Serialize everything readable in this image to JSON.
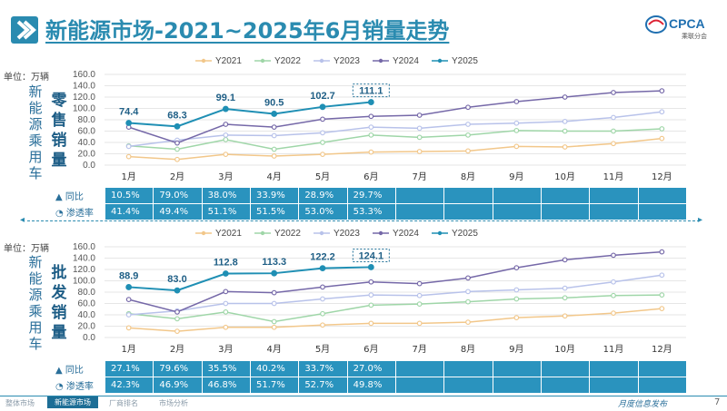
{
  "title": "新能源市场-2021~2025年6月销量走势",
  "logo_text": "CPCA",
  "logo_sub": "乘联分会",
  "months": [
    "1月",
    "2月",
    "3月",
    "4月",
    "5月",
    "6月",
    "7月",
    "8月",
    "9月",
    "10月",
    "11月",
    "12月"
  ],
  "legend": [
    "Y2021",
    "Y2022",
    "Y2023",
    "Y2024",
    "Y2025"
  ],
  "colors": {
    "Y2021": "#f2c78a",
    "Y2022": "#9fd6a8",
    "Y2023": "#b8c2ea",
    "Y2024": "#7568a8",
    "Y2025": "#1f8fb4"
  },
  "retail": {
    "unit": "单位：万辆",
    "category_label": "新能源乘用车",
    "chart_label": "零售销量",
    "yoy_label": "同比",
    "pen_label": "渗透率",
    "yoy": [
      "10.5%",
      "79.0%",
      "38.0%",
      "33.9%",
      "28.9%",
      "29.7%"
    ],
    "pen": [
      "41.4%",
      "49.4%",
      "51.1%",
      "51.5%",
      "53.0%",
      "53.3%"
    ]
  },
  "wholesale": {
    "unit": "单位：万辆",
    "category_label": "新能源乘用车",
    "chart_label": "批发销量",
    "yoy_label": "同比",
    "pen_label": "渗透率",
    "yoy": [
      "27.1%",
      "79.6%",
      "35.5%",
      "40.2%",
      "33.7%",
      "27.0%"
    ],
    "pen": [
      "42.3%",
      "46.9%",
      "46.8%",
      "51.7%",
      "52.7%",
      "49.8%"
    ]
  },
  "footer": {
    "tabs": [
      "整体市场",
      "新能源市场",
      "厂商排名",
      "市场分析"
    ],
    "active": 1,
    "release": "月度信息发布",
    "page": "7"
  },
  "chart_data": [
    {
      "type": "line",
      "title": "零售销量",
      "ylabel": "单位：万辆",
      "categories": [
        "1月",
        "2月",
        "3月",
        "4月",
        "5月",
        "6月",
        "7月",
        "8月",
        "9月",
        "10月",
        "11月",
        "12月"
      ],
      "ylim": [
        0,
        160
      ],
      "yticks": [
        "0.0",
        "20.0",
        "40.0",
        "60.0",
        "80.0",
        "100.0",
        "120.0",
        "140.0",
        "160.0"
      ],
      "series": [
        {
          "name": "Y2021",
          "values": [
            15,
            10,
            19,
            16,
            19,
            23,
            24,
            25,
            33,
            32,
            38,
            47
          ]
        },
        {
          "name": "Y2022",
          "values": [
            34,
            28,
            45,
            28,
            40,
            53,
            49,
            53,
            61,
            60,
            60,
            64
          ]
        },
        {
          "name": "Y2023",
          "values": [
            33,
            44,
            53,
            52,
            57,
            67,
            65,
            72,
            74,
            77,
            84,
            94
          ]
        },
        {
          "name": "Y2024",
          "values": [
            67,
            39,
            72,
            67,
            81,
            86,
            88,
            102,
            112,
            120,
            128,
            131
          ]
        },
        {
          "name": "Y2025",
          "values": [
            74.4,
            68.3,
            99.1,
            90.5,
            102.7,
            111.1
          ]
        }
      ],
      "labels": [
        "74.4",
        "68.3",
        "99.1",
        "90.5",
        "102.7",
        "111.1"
      ]
    },
    {
      "type": "line",
      "title": "批发销量",
      "ylabel": "单位：万辆",
      "categories": [
        "1月",
        "2月",
        "3月",
        "4月",
        "5月",
        "6月",
        "7月",
        "8月",
        "9月",
        "10月",
        "11月",
        "12月"
      ],
      "ylim": [
        0,
        160
      ],
      "yticks": [
        "0.0",
        "20.0",
        "40.0",
        "60.0",
        "80.0",
        "100.0",
        "120.0",
        "140.0",
        "160.0"
      ],
      "series": [
        {
          "name": "Y2021",
          "values": [
            17,
            11,
            18,
            18,
            22,
            25,
            25,
            27,
            35,
            38,
            43,
            51
          ]
        },
        {
          "name": "Y2022",
          "values": [
            42,
            33,
            45,
            28,
            42,
            57,
            59,
            63,
            68,
            70,
            74,
            75
          ]
        },
        {
          "name": "Y2023",
          "values": [
            40,
            47,
            60,
            60,
            68,
            75,
            74,
            81,
            84,
            87,
            98,
            110
          ]
        },
        {
          "name": "Y2024",
          "values": [
            67,
            45,
            81,
            79,
            89,
            98,
            95,
            105,
            123,
            137,
            145,
            151
          ]
        },
        {
          "name": "Y2025",
          "values": [
            88.9,
            83.0,
            112.8,
            113.3,
            122.2,
            124.1
          ]
        }
      ],
      "labels": [
        "88.9",
        "83.0",
        "112.8",
        "113.3",
        "122.2",
        "124.1"
      ]
    }
  ]
}
